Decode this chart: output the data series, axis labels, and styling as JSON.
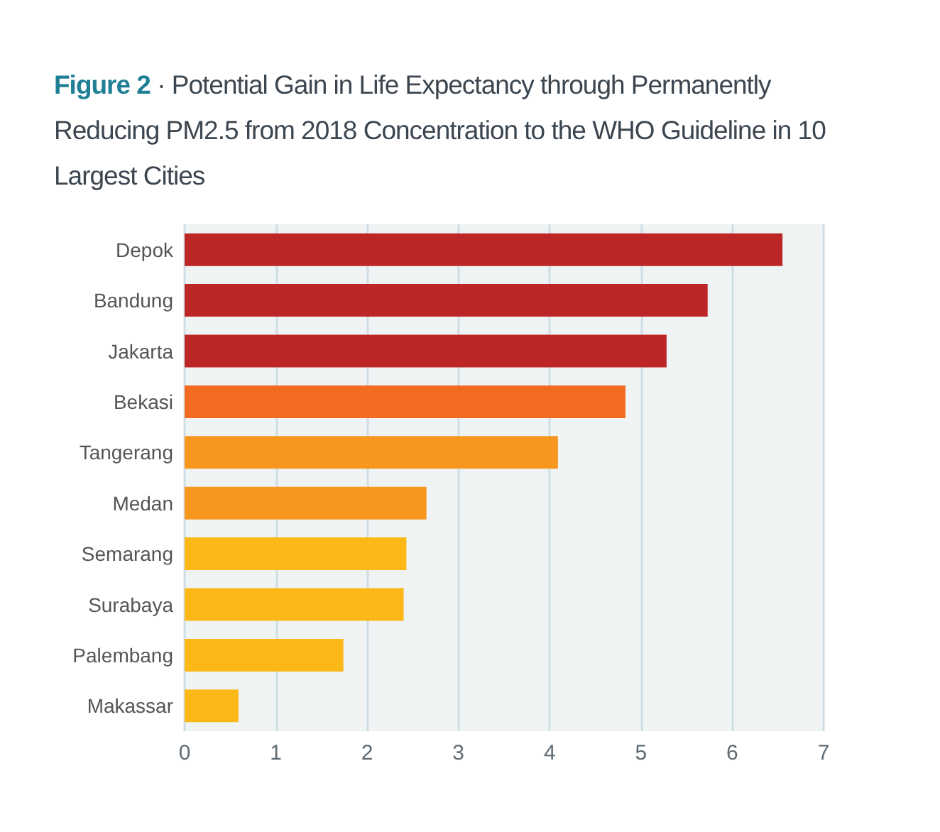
{
  "chart_data": {
    "type": "bar",
    "orientation": "horizontal",
    "title": "Figure 2",
    "subtitle": "· Potential Gain in Life Expectancy through Permanently Reducing PM2.5 from 2018 Concentration to the WHO Guideline in 10 Largest Cities",
    "categories": [
      "Depok",
      "Bandung",
      "Jakarta",
      "Bekasi",
      "Tangerang",
      "Medan",
      "Semarang",
      "Surabaya",
      "Palembang",
      "Makassar"
    ],
    "values": [
      6.55,
      5.73,
      5.28,
      4.83,
      4.09,
      2.65,
      2.43,
      2.4,
      1.74,
      0.59
    ],
    "colors": [
      "#bd2626",
      "#bd2626",
      "#bd2626",
      "#f26b21",
      "#f7971f",
      "#f7971f",
      "#fbb817",
      "#fbb817",
      "#fbb817",
      "#fbb817"
    ],
    "xlim": [
      0,
      7
    ],
    "xticks": [
      0,
      1,
      2,
      3,
      4,
      5,
      6,
      7
    ],
    "grid": "x"
  }
}
